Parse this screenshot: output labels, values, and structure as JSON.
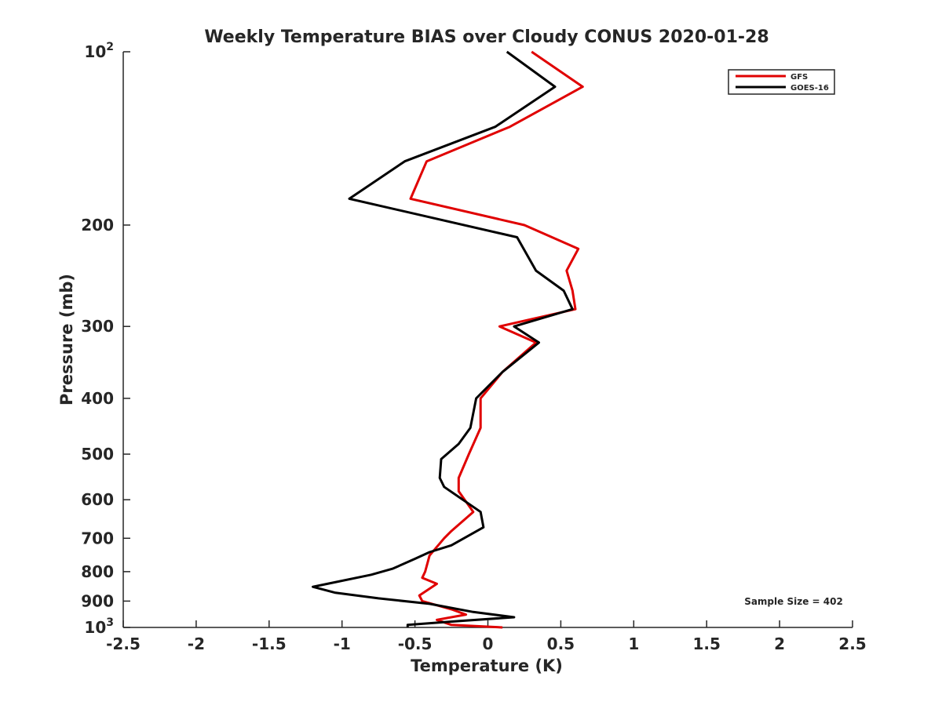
{
  "chart_data": {
    "type": "line",
    "title": "Weekly Temperature BIAS over Cloudy CONUS 2020-01-28",
    "xlabel": "Temperature (K)",
    "ylabel": "Pressure (mb)",
    "xlim": [
      -2.5,
      2.5
    ],
    "ylim": [
      100,
      1000
    ],
    "y_scale": "log",
    "y_reversed": true,
    "grid": false,
    "legend_position": "top-right",
    "x_ticks": [
      -2.5,
      -2,
      -1.5,
      -1,
      -0.5,
      0,
      0.5,
      1,
      1.5,
      2,
      2.5
    ],
    "x_tick_labels": [
      "-2.5",
      "-2",
      "-1.5",
      "-1",
      "-0.5",
      "0",
      "0.5",
      "1",
      "1.5",
      "2",
      "2.5"
    ],
    "y_ticks": [
      100,
      200,
      300,
      400,
      500,
      600,
      700,
      800,
      900,
      1000
    ],
    "y_tick_labels": [
      {
        "base": "10",
        "exp": "2"
      },
      {
        "base": "200",
        "exp": ""
      },
      {
        "base": "300",
        "exp": ""
      },
      {
        "base": "400",
        "exp": ""
      },
      {
        "base": "500",
        "exp": ""
      },
      {
        "base": "600",
        "exp": ""
      },
      {
        "base": "700",
        "exp": ""
      },
      {
        "base": "800",
        "exp": ""
      },
      {
        "base": "900",
        "exp": ""
      },
      {
        "base": "10",
        "exp": "3"
      }
    ],
    "annotation": "Sample Size = 402",
    "series": [
      {
        "name": "GFS",
        "color": "#e00000",
        "points": [
          [
            0.3,
            100
          ],
          [
            0.65,
            115
          ],
          [
            0.15,
            135
          ],
          [
            -0.42,
            155
          ],
          [
            -0.53,
            180
          ],
          [
            0.25,
            200
          ],
          [
            0.62,
            220
          ],
          [
            0.54,
            240
          ],
          [
            0.58,
            260
          ],
          [
            0.6,
            280
          ],
          [
            0.08,
            300
          ],
          [
            0.33,
            320
          ],
          [
            0.1,
            360
          ],
          [
            -0.05,
            400
          ],
          [
            -0.05,
            450
          ],
          [
            -0.13,
            500
          ],
          [
            -0.2,
            550
          ],
          [
            -0.2,
            580
          ],
          [
            -0.1,
            630
          ],
          [
            -0.25,
            680
          ],
          [
            -0.3,
            700
          ],
          [
            -0.4,
            750
          ],
          [
            -0.43,
            800
          ],
          [
            -0.45,
            820
          ],
          [
            -0.35,
            840
          ],
          [
            -0.47,
            880
          ],
          [
            -0.45,
            900
          ],
          [
            -0.25,
            930
          ],
          [
            -0.15,
            950
          ],
          [
            -0.35,
            970
          ],
          [
            -0.25,
            990
          ],
          [
            0.1,
            1000
          ]
        ]
      },
      {
        "name": "GOES-16",
        "color": "#000000",
        "points": [
          [
            0.13,
            100
          ],
          [
            0.46,
            115
          ],
          [
            0.05,
            135
          ],
          [
            -0.57,
            155
          ],
          [
            -0.95,
            180
          ],
          [
            0.2,
            210
          ],
          [
            0.33,
            240
          ],
          [
            0.52,
            260
          ],
          [
            0.58,
            280
          ],
          [
            0.18,
            300
          ],
          [
            0.35,
            320
          ],
          [
            0.1,
            360
          ],
          [
            -0.08,
            400
          ],
          [
            -0.12,
            450
          ],
          [
            -0.2,
            480
          ],
          [
            -0.32,
            510
          ],
          [
            -0.33,
            550
          ],
          [
            -0.3,
            570
          ],
          [
            -0.05,
            630
          ],
          [
            -0.03,
            670
          ],
          [
            -0.25,
            720
          ],
          [
            -0.4,
            740
          ],
          [
            -0.5,
            760
          ],
          [
            -0.65,
            790
          ],
          [
            -0.8,
            810
          ],
          [
            -1.1,
            840
          ],
          [
            -1.2,
            850
          ],
          [
            -1.05,
            870
          ],
          [
            -0.75,
            890
          ],
          [
            -0.4,
            910
          ],
          [
            -0.1,
            940
          ],
          [
            0.18,
            960
          ],
          [
            -0.2,
            975
          ],
          [
            -0.55,
            990
          ],
          [
            -0.55,
            1000
          ]
        ]
      }
    ]
  }
}
